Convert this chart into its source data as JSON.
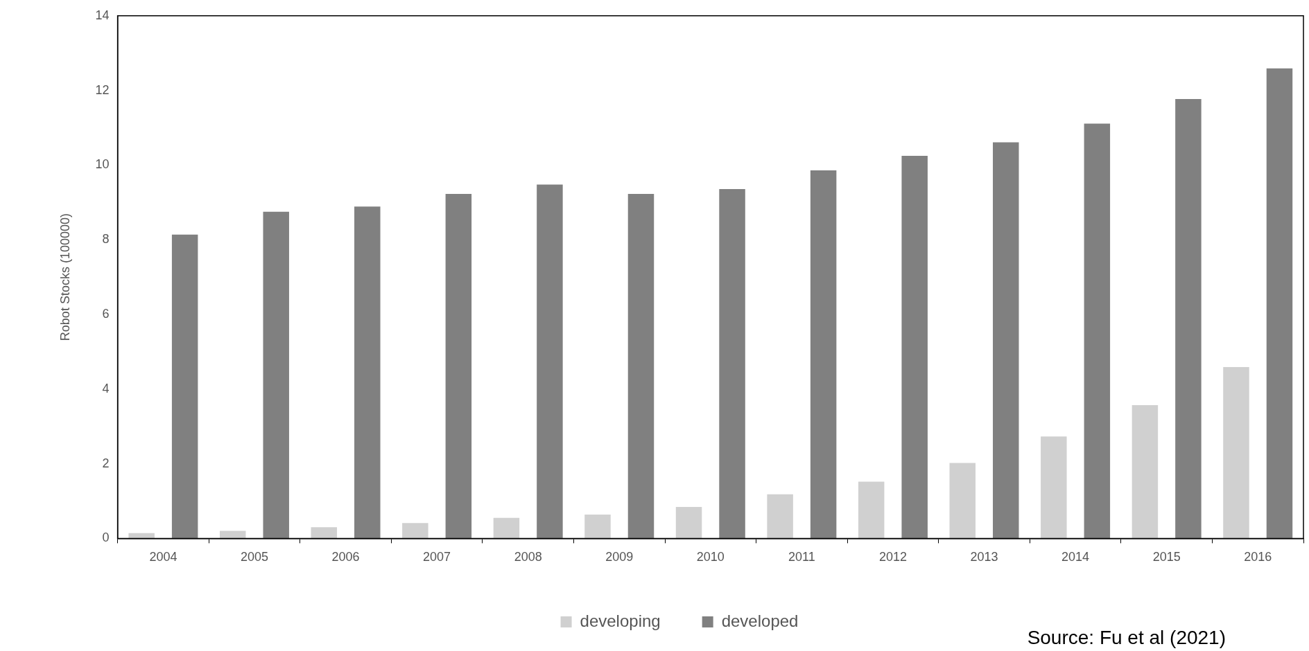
{
  "chart_data": {
    "type": "bar",
    "ylabel": "Robot Stocks (100000)",
    "categories": [
      "2004",
      "2005",
      "2006",
      "2007",
      "2008",
      "2009",
      "2010",
      "2011",
      "2012",
      "2013",
      "2014",
      "2015",
      "2016"
    ],
    "series": [
      {
        "name": "developing",
        "color": "#d0d0d0",
        "values": [
          0.14,
          0.2,
          0.3,
          0.41,
          0.55,
          0.64,
          0.84,
          1.18,
          1.52,
          2.02,
          2.73,
          3.57,
          4.59
        ]
      },
      {
        "name": "developed",
        "color": "#808080",
        "values": [
          8.14,
          8.75,
          8.89,
          9.23,
          9.48,
          9.23,
          9.36,
          9.86,
          10.25,
          10.61,
          11.11,
          11.77,
          12.59
        ]
      }
    ],
    "ylim": [
      0,
      14
    ],
    "yticks": [
      0,
      2,
      4,
      6,
      8,
      10,
      12,
      14
    ],
    "grid": false,
    "legend": "bottom",
    "annotations": [
      "Source: Fu et al (2021)"
    ]
  }
}
